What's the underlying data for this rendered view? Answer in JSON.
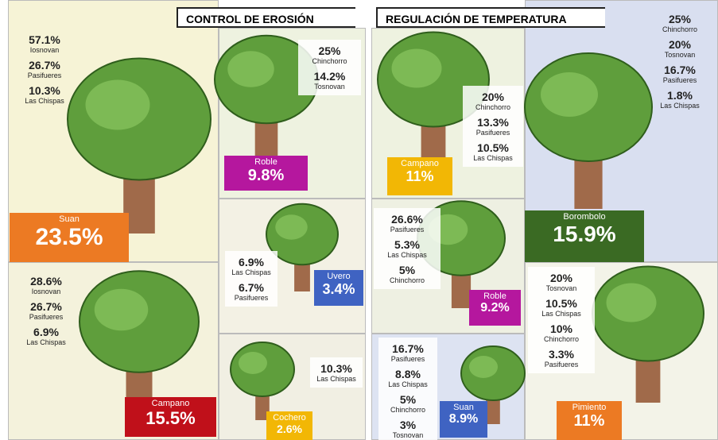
{
  "panels": [
    {
      "title": "CONTROL DE EROSIÓN",
      "tiles": [
        {
          "name": "Suan",
          "value": "23.5%",
          "color": "#ec7a23",
          "stats": [
            {
              "value": "57.1%",
              "label": "Iosnovan"
            },
            {
              "value": "26.7%",
              "label": "Pasifueres"
            },
            {
              "value": "10.3%",
              "label": "Las Chispas"
            }
          ]
        },
        {
          "name": "Roble",
          "value": "9.8%",
          "color": "#b5179e",
          "stats": [
            {
              "value": "25%",
              "label": "Chinchorro"
            },
            {
              "value": "14.2%",
              "label": "Tosnovan"
            }
          ]
        },
        {
          "name": "Uvero",
          "value": "3.4%",
          "color": "#3f63c2",
          "stats": [
            {
              "value": "6.9%",
              "label": "Las Chispas"
            },
            {
              "value": "6.7%",
              "label": "Pasifueres"
            }
          ]
        },
        {
          "name": "Cochero",
          "value": "2.6%",
          "color": "#f2b705",
          "stats": [
            {
              "value": "10.3%",
              "label": "Las Chispas"
            }
          ]
        },
        {
          "name": "Campano",
          "value": "15.5%",
          "color": "#c0101a",
          "stats": [
            {
              "value": "28.6%",
              "label": "Iosnovan"
            },
            {
              "value": "26.7%",
              "label": "Pasifueres"
            },
            {
              "value": "6.9%",
              "label": "Las Chispas"
            }
          ]
        }
      ]
    },
    {
      "title": "REGULACIÓN DE TEMPERATURA",
      "tiles": [
        {
          "name": "Campano",
          "value": "11%",
          "color": "#f2b705",
          "stats": [
            {
              "value": "20%",
              "label": "Chinchorro"
            },
            {
              "value": "13.3%",
              "label": "Pasifueres"
            },
            {
              "value": "10.5%",
              "label": "Las Chispas"
            }
          ]
        },
        {
          "name": "Borombolo",
          "value": "15.9%",
          "color": "#3a6a23",
          "stats": [
            {
              "value": "25%",
              "label": "Chinchorro"
            },
            {
              "value": "20%",
              "label": "Tosnovan"
            },
            {
              "value": "16.7%",
              "label": "Pasifueres"
            },
            {
              "value": "1.8%",
              "label": "Las Chispas"
            }
          ]
        },
        {
          "name": "Roble",
          "value": "9.2%",
          "color": "#b5179e",
          "stats": [
            {
              "value": "26.6%",
              "label": "Pasifueres"
            },
            {
              "value": "5.3%",
              "label": "Las Chispas"
            },
            {
              "value": "5%",
              "label": "Chinchorro"
            }
          ]
        },
        {
          "name": "Suan",
          "value": "8.9%",
          "color": "#3f63c2",
          "stats": [
            {
              "value": "16.7%",
              "label": "Pasifueres"
            },
            {
              "value": "8.8%",
              "label": "Las Chispas"
            },
            {
              "value": "5%",
              "label": "Chinchorro"
            },
            {
              "value": "3%",
              "label": "Tosnovan"
            }
          ]
        },
        {
          "name": "Pimiento",
          "value": "11%",
          "color": "#ec7a23",
          "stats": [
            {
              "value": "20%",
              "label": "Tosnovan"
            },
            {
              "value": "10.5%",
              "label": "Las Chispas"
            },
            {
              "value": "10%",
              "label": "Chinchorro"
            },
            {
              "value": "3.3%",
              "label": "Pasifueres"
            }
          ]
        }
      ]
    }
  ]
}
